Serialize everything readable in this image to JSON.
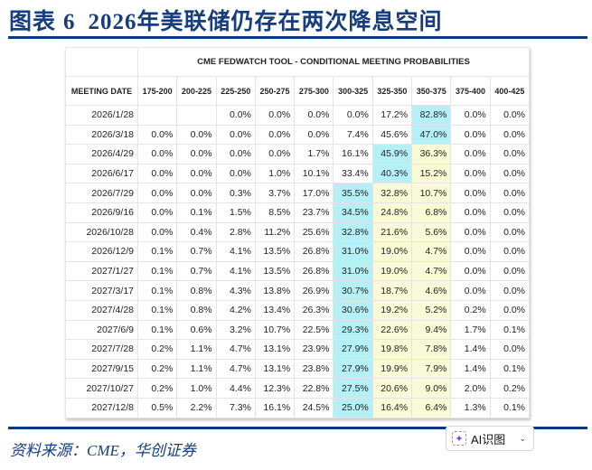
{
  "figure": {
    "label": "图表",
    "number": "6",
    "title": "2026年美联储仍存在两次降息空间"
  },
  "table": {
    "caption": "CME FEDWATCH TOOL - CONDITIONAL MEETING PROBABILITIES",
    "columns": [
      "MEETING DATE",
      "175-200",
      "200-225",
      "225-250",
      "250-275",
      "275-300",
      "300-325",
      "325-350",
      "350-375",
      "375-400",
      "400-425"
    ],
    "highlight_colors": {
      "max": "#b6f0f7",
      "secondary": "#fafad6"
    },
    "rows": [
      {
        "date": "2026/1/28",
        "values": [
          "",
          "",
          "0.0%",
          "0.0%",
          "0.0%",
          "0.0%",
          "17.2%",
          "82.8%",
          "0.0%",
          "0.0%"
        ],
        "max": 7,
        "secondary": []
      },
      {
        "date": "2026/3/18",
        "values": [
          "0.0%",
          "0.0%",
          "0.0%",
          "0.0%",
          "0.0%",
          "7.4%",
          "45.6%",
          "47.0%",
          "0.0%",
          "0.0%"
        ],
        "max": 7,
        "secondary": []
      },
      {
        "date": "2026/4/29",
        "values": [
          "0.0%",
          "0.0%",
          "0.0%",
          "0.0%",
          "1.7%",
          "16.1%",
          "45.9%",
          "36.3%",
          "0.0%",
          "0.0%"
        ],
        "max": 6,
        "secondary": [
          7
        ]
      },
      {
        "date": "2026/6/17",
        "values": [
          "0.0%",
          "0.0%",
          "0.0%",
          "1.0%",
          "10.1%",
          "33.4%",
          "40.3%",
          "15.2%",
          "0.0%",
          "0.0%"
        ],
        "max": 6,
        "secondary": [
          7
        ]
      },
      {
        "date": "2026/7/29",
        "values": [
          "0.0%",
          "0.0%",
          "0.3%",
          "3.7%",
          "17.0%",
          "35.5%",
          "32.8%",
          "10.7%",
          "0.0%",
          "0.0%"
        ],
        "max": 5,
        "secondary": [
          6,
          7
        ]
      },
      {
        "date": "2026/9/16",
        "values": [
          "0.0%",
          "0.1%",
          "1.5%",
          "8.5%",
          "23.7%",
          "34.5%",
          "24.8%",
          "6.8%",
          "0.0%",
          "0.0%"
        ],
        "max": 5,
        "secondary": [
          6,
          7
        ]
      },
      {
        "date": "2026/10/28",
        "values": [
          "0.0%",
          "0.4%",
          "2.8%",
          "11.2%",
          "25.6%",
          "32.8%",
          "21.6%",
          "5.6%",
          "0.0%",
          "0.0%"
        ],
        "max": 5,
        "secondary": [
          6,
          7
        ]
      },
      {
        "date": "2026/12/9",
        "values": [
          "0.1%",
          "0.7%",
          "4.1%",
          "13.5%",
          "26.8%",
          "31.0%",
          "19.0%",
          "4.7%",
          "0.0%",
          "0.0%"
        ],
        "max": 5,
        "secondary": [
          6,
          7
        ]
      },
      {
        "date": "2027/1/27",
        "values": [
          "0.1%",
          "0.7%",
          "4.1%",
          "13.5%",
          "26.8%",
          "31.0%",
          "19.0%",
          "4.7%",
          "0.0%",
          "0.0%"
        ],
        "max": 5,
        "secondary": [
          6,
          7
        ]
      },
      {
        "date": "2027/3/17",
        "values": [
          "0.1%",
          "0.8%",
          "4.3%",
          "13.8%",
          "26.9%",
          "30.7%",
          "18.7%",
          "4.6%",
          "0.0%",
          "0.0%"
        ],
        "max": 5,
        "secondary": [
          6,
          7
        ]
      },
      {
        "date": "2027/4/28",
        "values": [
          "0.1%",
          "0.8%",
          "4.2%",
          "13.4%",
          "26.3%",
          "30.6%",
          "19.2%",
          "5.2%",
          "0.2%",
          "0.0%"
        ],
        "max": 5,
        "secondary": [
          6,
          7
        ]
      },
      {
        "date": "2027/6/9",
        "values": [
          "0.1%",
          "0.6%",
          "3.2%",
          "10.7%",
          "22.5%",
          "29.3%",
          "22.6%",
          "9.4%",
          "1.7%",
          "0.1%"
        ],
        "max": 5,
        "secondary": [
          6,
          7
        ]
      },
      {
        "date": "2027/7/28",
        "values": [
          "0.2%",
          "1.1%",
          "4.7%",
          "13.1%",
          "23.9%",
          "27.9%",
          "19.8%",
          "7.8%",
          "1.4%",
          "0.0%"
        ],
        "max": 5,
        "secondary": [
          6,
          7
        ]
      },
      {
        "date": "2027/9/15",
        "values": [
          "0.2%",
          "1.1%",
          "4.7%",
          "13.1%",
          "23.8%",
          "27.9%",
          "19.9%",
          "7.9%",
          "1.4%",
          "0.1%"
        ],
        "max": 5,
        "secondary": [
          6,
          7
        ]
      },
      {
        "date": "2027/10/27",
        "values": [
          "0.2%",
          "1.0%",
          "4.4%",
          "12.3%",
          "22.8%",
          "27.5%",
          "20.6%",
          "9.0%",
          "2.0%",
          "0.2%"
        ],
        "max": 5,
        "secondary": [
          6,
          7
        ]
      },
      {
        "date": "2027/12/8",
        "values": [
          "0.5%",
          "2.2%",
          "7.3%",
          "16.1%",
          "24.5%",
          "25.0%",
          "16.4%",
          "6.4%",
          "1.3%",
          "0.1%"
        ],
        "max": 5,
        "secondary": [
          6,
          7
        ]
      }
    ]
  },
  "source": "资料来源：CME，华创证券",
  "ai_button": {
    "label": "AI识图",
    "icon": "sparkle-icon"
  }
}
